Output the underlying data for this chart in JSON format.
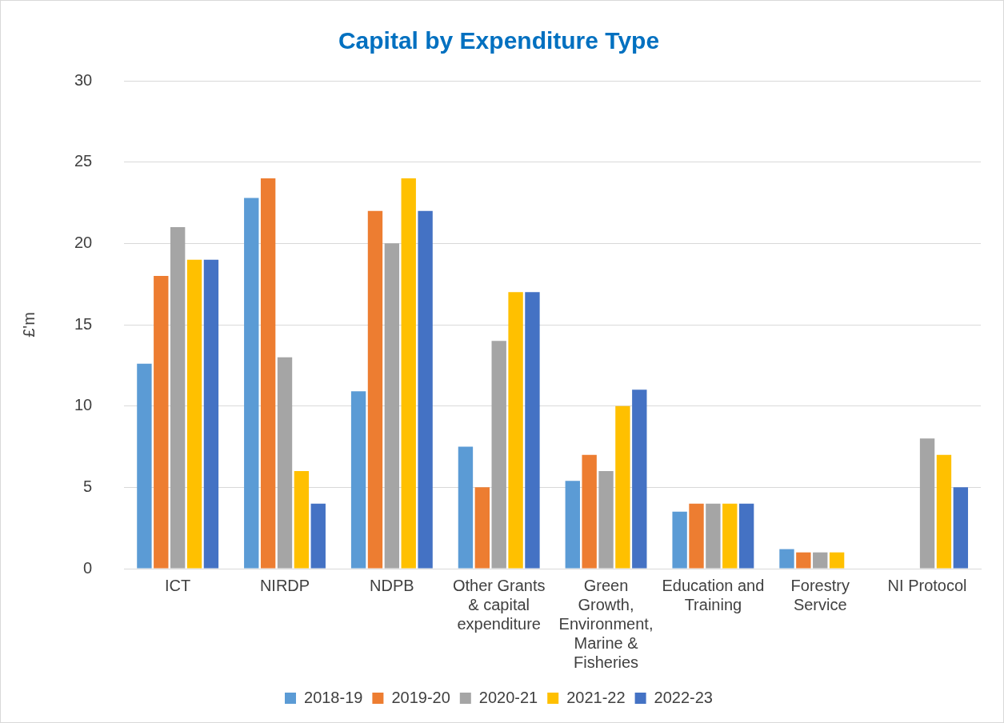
{
  "chart_data": {
    "type": "bar",
    "title": "Capital by Expenditure Type",
    "ylabel": "£'m",
    "categories": [
      "ICT",
      "NIRDP",
      "NDPB",
      "Other Grants & capital expenditure",
      "Green Growth, Environment, Marine & Fisheries",
      "Education and Training",
      "Forestry Service",
      "NI Protocol"
    ],
    "series": [
      {
        "name": "2018-19",
        "color": "#5b9bd5",
        "values": [
          12.6,
          22.8,
          10.9,
          7.5,
          5.4,
          3.5,
          1.2,
          null
        ]
      },
      {
        "name": "2019-20",
        "color": "#ed7d31",
        "values": [
          18,
          24,
          22,
          5,
          7,
          4,
          1,
          null
        ]
      },
      {
        "name": "2020-21",
        "color": "#a5a5a5",
        "values": [
          21,
          13,
          20,
          14,
          6,
          4,
          1,
          8
        ]
      },
      {
        "name": "2021-22",
        "color": "#ffc000",
        "values": [
          19,
          6,
          24,
          17,
          10,
          4,
          1,
          7
        ]
      },
      {
        "name": "2022-23",
        "color": "#4472c4",
        "values": [
          19,
          4,
          22,
          17,
          11,
          4,
          null,
          5
        ]
      }
    ],
    "ylim": [
      0,
      30
    ],
    "yticks": [
      0,
      5,
      10,
      15,
      20,
      25,
      30
    ],
    "grid": "y",
    "legend": "bottom"
  }
}
